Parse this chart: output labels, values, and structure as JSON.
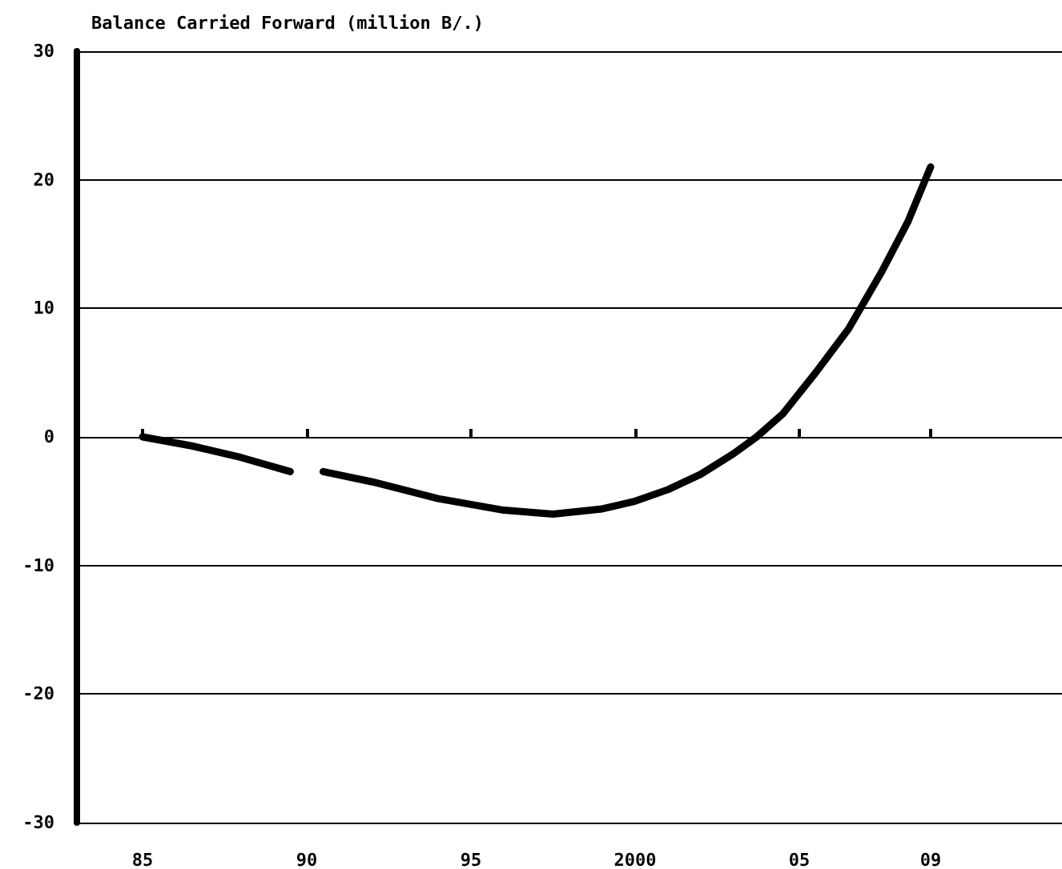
{
  "chart_data": {
    "type": "line",
    "title": "Balance Carried Forward (million B/.)",
    "x": [
      1985,
      1986.5,
      1988,
      1989.5,
      1990,
      1990.5,
      1992,
      1994,
      1996,
      1997.5,
      1999,
      2000,
      2001,
      2002,
      2003,
      2003.7,
      2004.5,
      2005.5,
      2006.5,
      2007.5,
      2008.3,
      2009
    ],
    "series": [
      {
        "color": "#000000",
        "values": [
          0,
          -0.7,
          -1.6,
          -2.7,
          null,
          -2.7,
          -3.5,
          -4.8,
          -5.7,
          -6,
          -5.6,
          -5,
          -4.1,
          -2.9,
          -1.3,
          0,
          1.8,
          5,
          8.4,
          12.8,
          16.7,
          21
        ]
      }
    ],
    "xlim": [
      1983,
      2013
    ],
    "xticks": [
      {
        "value": 1985,
        "label": "85"
      },
      {
        "value": 1990,
        "label": "90"
      },
      {
        "value": 1995,
        "label": "95"
      },
      2000,
      {
        "value": 2005,
        "label": "05"
      },
      {
        "value": 2009,
        "label": "09"
      }
    ],
    "ylim": [
      -30,
      30
    ],
    "yticks": [
      -30,
      -20,
      -10,
      0,
      10,
      20,
      30
    ],
    "grid": "y",
    "marker": "none",
    "line_style": "solid"
  }
}
